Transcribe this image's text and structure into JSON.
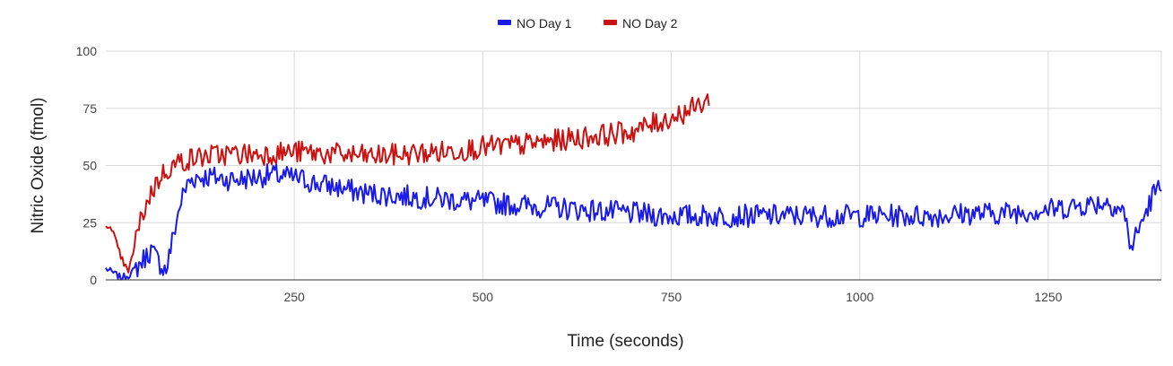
{
  "chart_data": {
    "type": "line",
    "title": "",
    "xlabel": "Time (seconds)",
    "ylabel": "Nitric Oxide (fmol)",
    "xlim": [
      0,
      1400
    ],
    "ylim": [
      0,
      100
    ],
    "xticks": [
      250,
      500,
      750,
      1000,
      1250
    ],
    "yticks": [
      0,
      25,
      50,
      75,
      100
    ],
    "grid": true,
    "legend_position": "top",
    "series": [
      {
        "name": "NO Day 1",
        "color": "#1a1aeb",
        "noise": 5,
        "x": [
          0,
          10,
          20,
          30,
          40,
          50,
          60,
          70,
          80,
          90,
          100,
          110,
          120,
          140,
          160,
          180,
          200,
          220,
          240,
          260,
          280,
          300,
          340,
          380,
          420,
          460,
          500,
          540,
          580,
          620,
          660,
          700,
          740,
          780,
          820,
          860,
          900,
          940,
          980,
          1020,
          1060,
          1100,
          1140,
          1180,
          1220,
          1260,
          1300,
          1330,
          1350,
          1360,
          1370,
          1380,
          1390,
          1400
        ],
        "y": [
          5,
          3,
          1,
          2,
          5,
          9,
          13,
          8,
          4,
          20,
          35,
          43,
          45,
          45,
          44,
          44,
          45,
          46,
          45,
          44,
          42,
          41,
          38,
          37,
          36,
          35,
          34,
          33,
          32,
          31,
          30,
          29,
          28,
          28,
          28,
          28,
          28,
          28,
          28,
          28,
          28,
          28,
          29,
          29,
          30,
          31,
          33,
          34,
          30,
          14,
          22,
          30,
          38,
          40
        ]
      },
      {
        "name": "NO Day 2",
        "color": "#cc1111",
        "noise": 5,
        "x": [
          0,
          10,
          20,
          30,
          40,
          50,
          60,
          70,
          80,
          90,
          100,
          130,
          160,
          200,
          250,
          300,
          350,
          400,
          450,
          500,
          550,
          600,
          650,
          700,
          750,
          780,
          800
        ],
        "y": [
          25,
          20,
          10,
          3,
          18,
          30,
          38,
          44,
          48,
          50,
          52,
          54,
          55,
          55,
          56,
          55,
          54,
          55,
          56,
          58,
          59,
          61,
          63,
          65,
          71,
          75,
          79
        ]
      }
    ]
  }
}
